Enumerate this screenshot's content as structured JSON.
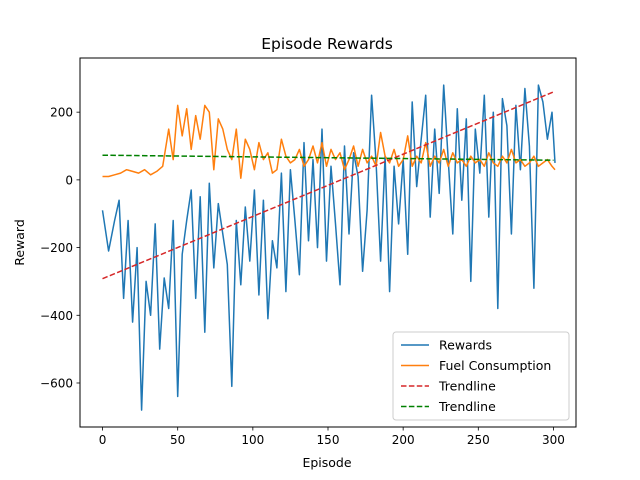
{
  "chart_data": {
    "type": "line",
    "title": "Episode Rewards",
    "xlabel": "Episode",
    "ylabel": "Reward",
    "xlim": [
      -15,
      315
    ],
    "ylim": [
      -730,
      360
    ],
    "xticks": [
      0,
      50,
      100,
      150,
      200,
      250,
      300
    ],
    "yticks": [
      -600,
      -400,
      -200,
      0,
      200
    ],
    "ytick_labels": [
      "−600",
      "−400",
      "−200",
      "0",
      "200"
    ],
    "grid": false,
    "legend_position": "lower right",
    "series": [
      {
        "name": "Rewards",
        "color": "#1f77b4",
        "style": "solid",
        "x": [
          0,
          4,
          8,
          11,
          14,
          17,
          20,
          23,
          26,
          29,
          32,
          35,
          38,
          41,
          44,
          47,
          50,
          53,
          56,
          59,
          62,
          65,
          68,
          71,
          74,
          77,
          80,
          83,
          86,
          89,
          92,
          95,
          98,
          101,
          104,
          107,
          110,
          113,
          116,
          119,
          122,
          125,
          128,
          131,
          134,
          137,
          140,
          143,
          146,
          149,
          152,
          155,
          158,
          161,
          164,
          167,
          170,
          173,
          176,
          179,
          182,
          185,
          188,
          191,
          194,
          197,
          200,
          203,
          206,
          209,
          212,
          215,
          218,
          221,
          224,
          227,
          230,
          233,
          236,
          239,
          242,
          245,
          248,
          251,
          254,
          257,
          260,
          263,
          266,
          269,
          272,
          275,
          278,
          281,
          284,
          287,
          290,
          293,
          296,
          299,
          301
        ],
        "values": [
          -90,
          -210,
          -120,
          -60,
          -350,
          -120,
          -420,
          -200,
          -680,
          -300,
          -400,
          -130,
          -500,
          -290,
          -380,
          -120,
          -640,
          -220,
          -120,
          -30,
          -350,
          -50,
          -450,
          -10,
          -260,
          -70,
          -160,
          -250,
          -610,
          -120,
          -310,
          -80,
          -240,
          -30,
          -340,
          -60,
          -410,
          -180,
          -260,
          20,
          -330,
          30,
          -120,
          -280,
          110,
          -180,
          60,
          -200,
          150,
          -240,
          40,
          -130,
          -310,
          100,
          -160,
          80,
          10,
          -270,
          -90,
          250,
          50,
          -240,
          70,
          -330,
          40,
          -130,
          60,
          -220,
          230,
          -20,
          120,
          250,
          -110,
          150,
          -40,
          280,
          60,
          -160,
          210,
          -60,
          180,
          -300,
          150,
          20,
          250,
          -110,
          200,
          -380,
          240,
          160,
          -160,
          220,
          30,
          270,
          100,
          -320,
          280,
          230,
          120,
          200,
          50
        ]
      },
      {
        "name": "Fuel Consumption",
        "color": "#ff7f0e",
        "style": "solid",
        "x": [
          0,
          4,
          8,
          12,
          16,
          20,
          24,
          28,
          32,
          36,
          40,
          44,
          47,
          50,
          53,
          56,
          59,
          62,
          65,
          68,
          71,
          74,
          77,
          80,
          83,
          86,
          89,
          92,
          95,
          98,
          101,
          104,
          107,
          110,
          113,
          116,
          119,
          122,
          125,
          128,
          131,
          134,
          137,
          140,
          143,
          146,
          149,
          152,
          155,
          158,
          161,
          164,
          167,
          170,
          173,
          176,
          179,
          182,
          185,
          188,
          191,
          194,
          197,
          200,
          203,
          206,
          209,
          212,
          215,
          218,
          221,
          224,
          227,
          230,
          233,
          236,
          239,
          242,
          245,
          248,
          251,
          254,
          257,
          260,
          263,
          266,
          269,
          272,
          275,
          278,
          281,
          284,
          287,
          290,
          293,
          296,
          299,
          301
        ],
        "values": [
          10,
          10,
          15,
          20,
          30,
          25,
          20,
          30,
          15,
          25,
          40,
          150,
          60,
          220,
          130,
          210,
          90,
          190,
          120,
          220,
          200,
          30,
          180,
          150,
          90,
          60,
          150,
          5,
          120,
          90,
          30,
          110,
          60,
          80,
          20,
          30,
          120,
          70,
          50,
          60,
          90,
          40,
          60,
          100,
          50,
          110,
          40,
          90,
          60,
          80,
          30,
          60,
          100,
          40,
          90,
          50,
          70,
          40,
          140,
          70,
          50,
          90,
          40,
          60,
          130,
          40,
          70,
          50,
          110,
          40,
          70,
          50,
          90,
          40,
          80,
          50,
          60,
          40,
          70,
          50,
          60,
          40,
          80,
          50,
          40,
          70,
          50,
          90,
          50,
          60,
          40,
          50,
          70,
          40,
          50,
          60,
          40,
          30
        ]
      },
      {
        "name": "Trendline",
        "color": "#d62728",
        "style": "dashed",
        "x": [
          0,
          300
        ],
        "values": [
          -292,
          260
        ]
      },
      {
        "name": "Trendline",
        "color": "#008000",
        "style": "dashed",
        "x": [
          0,
          300
        ],
        "values": [
          73,
          58
        ]
      }
    ]
  }
}
